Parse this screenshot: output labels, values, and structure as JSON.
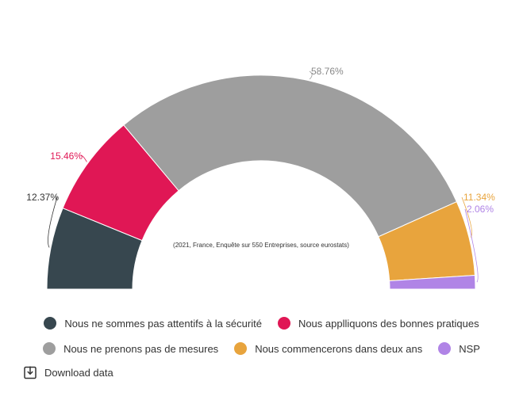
{
  "chart_data": {
    "type": "pie",
    "subtype": "semi-donut",
    "note": "(2021, France, Enquête sur 550 Entreprises, source eurostats)",
    "slices": [
      {
        "label": "Nous ne sommes pas attentifs à la sécurité",
        "value": 12.37,
        "value_label": "12.37%",
        "color": "#37474f"
      },
      {
        "label": "Nous applliquons des bonnes pratiques",
        "value": 15.46,
        "value_label": "15.46%",
        "color": "#e01755"
      },
      {
        "label": "Nous ne prenons pas de mesures",
        "value": 58.76,
        "value_label": "58.76%",
        "color": "#9e9e9e"
      },
      {
        "label": "Nous commencerons dans deux ans",
        "value": 11.34,
        "value_label": "11.34%",
        "color": "#e8a43d"
      },
      {
        "label": "NSP",
        "value": 2.06,
        "value_label": "2.06%",
        "color": "#b084e6"
      }
    ],
    "legend_position": "bottom"
  },
  "legend": {
    "row1": [
      "Nous ne sommes pas attentifs à la sécurité",
      "Nous applliquons des bonnes pratiques"
    ],
    "row2": [
      "Nous ne prenons pas de mesures",
      "Nous commencerons dans deux ans",
      "NSP"
    ]
  },
  "download": {
    "label": "Download data",
    "icon": "download-icon"
  }
}
